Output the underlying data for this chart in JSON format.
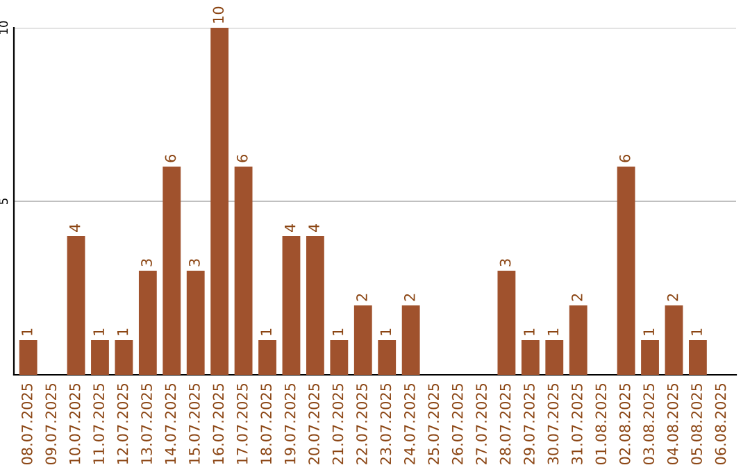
{
  "chart_data": {
    "type": "bar",
    "categories": [
      "08.07.2025",
      "09.07.2025",
      "10.07.2025",
      "11.07.2025",
      "12.07.2025",
      "13.07.2025",
      "14.07.2025",
      "15.07.2025",
      "16.07.2025",
      "17.07.2025",
      "18.07.2025",
      "19.07.2025",
      "20.07.2025",
      "21.07.2025",
      "22.07.2025",
      "23.07.2025",
      "24.07.2025",
      "25.07.2025",
      "26.07.2025",
      "27.07.2025",
      "28.07.2025",
      "29.07.2025",
      "30.07.2025",
      "31.07.2025",
      "01.08.2025",
      "02.08.2025",
      "03.08.2025",
      "04.08.2025",
      "05.08.2025",
      "06.08.2025"
    ],
    "values": [
      1,
      0,
      4,
      1,
      1,
      3,
      6,
      3,
      10,
      6,
      1,
      4,
      4,
      1,
      2,
      1,
      2,
      0,
      0,
      0,
      3,
      1,
      1,
      2,
      0,
      6,
      1,
      2,
      1,
      0
    ],
    "value_labels": [
      "1",
      null,
      "4",
      "1",
      "1",
      "3",
      "6",
      "3",
      "10",
      "6",
      "1",
      "4",
      "4",
      "1",
      "2",
      "1",
      "2",
      null,
      null,
      null,
      "3",
      "1",
      "1",
      "2",
      null,
      "6",
      "1",
      "2",
      "1",
      null
    ],
    "color": "#a0522d",
    "ylim": [
      0,
      10
    ],
    "yticks": [
      {
        "value": 0,
        "label": null
      },
      5,
      10
    ],
    "grid": "y"
  }
}
